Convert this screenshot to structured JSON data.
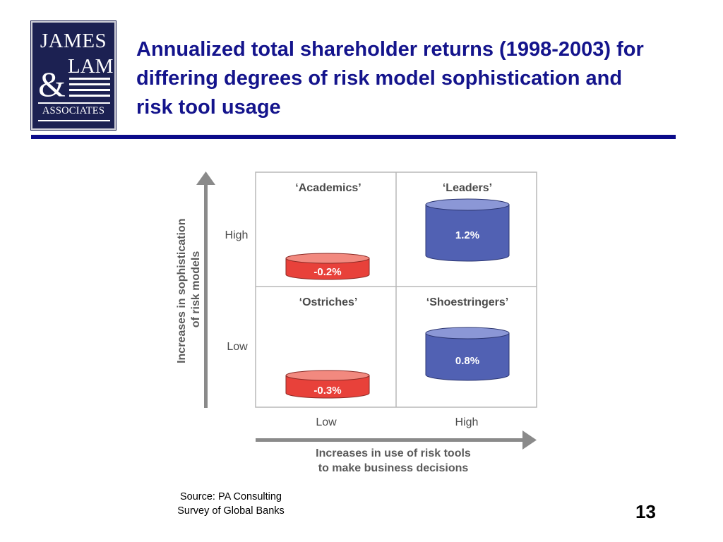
{
  "logo": {
    "line1": "JAMES",
    "line2": "LAM",
    "ampersand": "&",
    "line3": "ASSOCIATES"
  },
  "title": "Annualized total shareholder returns (1998-2003) for differing degrees of risk model sophistication and risk tool usage",
  "matrix": {
    "y_axis_label_line1": "Increases in sophistication",
    "y_axis_label_line2": "of risk models",
    "y_ticks": [
      "High",
      "Low"
    ],
    "x_ticks": [
      "Low",
      "High"
    ],
    "x_axis_label_line1": "Increases in use of risk tools",
    "x_axis_label_line2": "to make business decisions",
    "quadrants": [
      {
        "name": "‘Academics’",
        "value": "-0.2%",
        "color": "#e8413a"
      },
      {
        "name": "‘Leaders’",
        "value": "1.2%",
        "color": "#5161b3"
      },
      {
        "name": "‘Ostriches’",
        "value": "-0.3%",
        "color": "#e8413a"
      },
      {
        "name": "‘Shoestringers’",
        "value": "0.8%",
        "color": "#5161b3"
      }
    ]
  },
  "source_line1": "Source: PA Consulting",
  "source_line2": "Survey of Global Banks",
  "page_number": "13"
}
